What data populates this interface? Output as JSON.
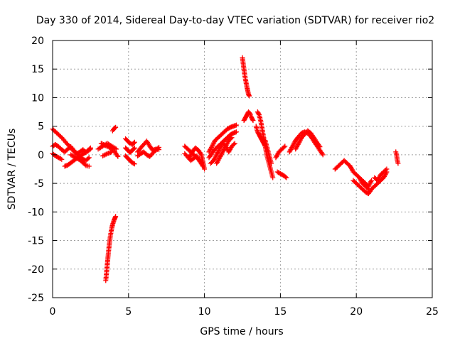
{
  "chart_data": {
    "type": "scatter",
    "title": "Day 330 of 2014, Sidereal Day-to-day VTEC variation (SDTVAR) for receiver rio2",
    "xlabel": "GPS time / hours",
    "ylabel": "SDTVAR / TECUs",
    "xlim": [
      0,
      25
    ],
    "ylim": [
      -25,
      20
    ],
    "x_ticks": [
      0,
      5,
      10,
      15,
      20,
      25
    ],
    "y_ticks": [
      -25,
      -20,
      -15,
      -10,
      -5,
      0,
      5,
      10,
      15,
      20
    ],
    "grid": true,
    "marker": "plus",
    "marker_color": "#ff0000",
    "series": [
      {
        "name": "SDTVAR",
        "segments": [
          {
            "x": [
              0.0,
              0.2,
              0.4,
              0.6,
              0.8,
              1.0,
              1.2,
              1.4,
              1.6,
              1.8,
              2.0,
              2.2,
              2.4
            ],
            "y": [
              4.5,
              4.0,
              3.5,
              3.0,
              2.4,
              1.8,
              1.2,
              0.6,
              0.2,
              -0.3,
              -0.8,
              -1.0,
              -0.5
            ]
          },
          {
            "x": [
              0.0,
              0.2,
              0.4,
              0.6,
              0.8,
              1.0,
              1.2,
              1.4,
              1.6,
              1.8,
              2.0,
              2.2,
              2.5
            ],
            "y": [
              1.5,
              1.8,
              1.4,
              0.9,
              0.5,
              1.0,
              1.4,
              0.8,
              0.2,
              0.5,
              0.9,
              0.4,
              1.0
            ]
          },
          {
            "x": [
              0.0,
              0.2,
              0.4,
              0.6
            ],
            "y": [
              0.2,
              -0.2,
              -0.5,
              -0.8
            ]
          },
          {
            "x": [
              0.8,
              1.0,
              1.2,
              1.4,
              1.6,
              1.8,
              2.0,
              2.2,
              2.5
            ],
            "y": [
              -2.0,
              -1.8,
              -1.4,
              -1.0,
              -0.6,
              -0.3,
              0.1,
              0.5,
              1.2
            ]
          },
          {
            "x": [
              1.2,
              1.4,
              1.6,
              1.8,
              2.0,
              2.2,
              2.4
            ],
            "y": [
              0.0,
              -0.3,
              -0.6,
              -0.9,
              -1.4,
              -1.9,
              -2.0
            ]
          },
          {
            "x": [
              3.0,
              3.3,
              3.6,
              3.9,
              4.2
            ],
            "y": [
              1.0,
              1.5,
              2.0,
              1.5,
              1.0
            ]
          },
          {
            "x": [
              3.2,
              3.5,
              3.8,
              4.1,
              4.3
            ],
            "y": [
              2.0,
              1.6,
              1.2,
              0.5,
              -0.3
            ]
          },
          {
            "x": [
              3.3,
              3.6,
              3.9
            ],
            "y": [
              -0.2,
              0.2,
              0.5
            ]
          },
          {
            "x": [
              3.95,
              4.05,
              4.15
            ],
            "y": [
              4.2,
              4.6,
              4.8
            ]
          },
          {
            "x": [
              3.5,
              3.55,
              3.6,
              3.65,
              3.7,
              3.75,
              3.8,
              3.85,
              3.9,
              3.95,
              4.0,
              4.05,
              4.1,
              4.15
            ],
            "y": [
              -22.0,
              -20.7,
              -19.2,
              -17.8,
              -16.5,
              -15.3,
              -14.3,
              -13.5,
              -12.8,
              -12.2,
              -11.8,
              -11.4,
              -11.1,
              -10.8
            ]
          },
          {
            "x": [
              4.8,
              4.95,
              5.1,
              5.25,
              5.4
            ],
            "y": [
              2.8,
              2.4,
              2.0,
              1.8,
              2.2
            ]
          },
          {
            "x": [
              4.8,
              4.95,
              5.1,
              5.25,
              5.4
            ],
            "y": [
              1.2,
              0.8,
              0.4,
              0.8,
              1.2
            ]
          },
          {
            "x": [
              4.8,
              4.95,
              5.1,
              5.25,
              5.4
            ],
            "y": [
              -0.2,
              -0.6,
              -1.0,
              -1.4,
              -1.6
            ]
          },
          {
            "x": [
              5.6,
              5.8,
              6.0,
              6.2,
              6.4,
              6.6,
              6.8,
              7.0
            ],
            "y": [
              0.5,
              1.2,
              1.8,
              2.4,
              1.5,
              0.8,
              1.0,
              0.9
            ]
          },
          {
            "x": [
              5.6,
              5.8,
              6.0,
              6.2,
              6.4,
              6.6,
              6.8,
              7.0
            ],
            "y": [
              -0.2,
              0.2,
              0.5,
              0.0,
              -0.3,
              0.3,
              0.8,
              1.3
            ]
          },
          {
            "x": [
              8.7,
              8.9,
              9.1,
              9.3,
              9.5,
              9.7,
              9.9
            ],
            "y": [
              1.5,
              1.0,
              0.5,
              0.0,
              -0.5,
              -1.0,
              -1.5
            ]
          },
          {
            "x": [
              8.7,
              8.9,
              9.1,
              9.3,
              9.5,
              9.7,
              9.9
            ],
            "y": [
              0.2,
              -0.4,
              -1.0,
              -0.6,
              -0.2,
              -1.2,
              -2.0
            ]
          },
          {
            "x": [
              9.0,
              9.2,
              9.4,
              9.6,
              9.8,
              10.0
            ],
            "y": [
              -0.5,
              0.5,
              1.2,
              0.8,
              0.0,
              -2.5
            ]
          },
          {
            "x": [
              10.3,
              10.5,
              10.7,
              10.9,
              11.1,
              11.3,
              11.5,
              11.7,
              11.9,
              12.1
            ],
            "y": [
              0.5,
              1.5,
              2.5,
              3.0,
              3.5,
              4.0,
              4.5,
              4.8,
              5.0,
              5.2
            ]
          },
          {
            "x": [
              10.3,
              10.5,
              10.7,
              10.9,
              11.1,
              11.3,
              11.5,
              11.7,
              11.9,
              12.1
            ],
            "y": [
              -0.5,
              0.3,
              1.0,
              1.5,
              2.0,
              2.5,
              3.0,
              3.5,
              3.8,
              4.0
            ]
          },
          {
            "x": [
              10.4,
              10.6,
              10.8,
              11.0,
              11.2,
              11.4,
              11.6,
              11.8,
              12.0
            ],
            "y": [
              -1.5,
              -1.0,
              0.0,
              1.0,
              2.0,
              1.5,
              0.5,
              1.5,
              2.0
            ]
          },
          {
            "x": [
              10.8,
              11.0,
              11.2,
              11.4,
              11.6,
              11.8
            ],
            "y": [
              -1.5,
              -0.5,
              0.5,
              1.5,
              2.5,
              3.0
            ]
          },
          {
            "x": [
              12.5,
              12.55,
              12.6,
              12.65,
              12.7,
              12.75,
              12.8,
              12.85,
              12.9,
              12.95
            ],
            "y": [
              17.0,
              16.0,
              15.0,
              14.0,
              13.2,
              12.5,
              11.8,
              11.2,
              10.6,
              10.3
            ]
          },
          {
            "x": [
              12.6,
              12.7,
              12.8,
              12.9,
              13.0,
              13.1,
              13.2
            ],
            "y": [
              6.0,
              6.5,
              7.0,
              7.5,
              7.2,
              6.5,
              6.0
            ]
          },
          {
            "x": [
              13.5,
              13.6,
              13.7,
              13.8,
              13.9,
              14.0,
              14.1,
              14.2,
              14.3,
              14.4,
              14.5
            ],
            "y": [
              7.5,
              7.0,
              6.0,
              4.5,
              3.0,
              1.5,
              0.0,
              -1.0,
              -2.0,
              -3.0,
              -4.0
            ]
          },
          {
            "x": [
              13.4,
              13.5,
              13.6,
              13.7,
              13.8,
              13.9,
              14.0
            ],
            "y": [
              5.0,
              4.0,
              3.5,
              3.0,
              2.5,
              2.0,
              1.5
            ]
          },
          {
            "x": [
              14.0,
              14.1,
              14.2,
              14.3,
              14.4
            ],
            "y": [
              2.5,
              1.5,
              0.5,
              -0.5,
              -1.5
            ]
          },
          {
            "x": [
              14.7,
              14.9,
              15.1,
              15.3
            ],
            "y": [
              -0.5,
              0.5,
              1.0,
              1.5
            ]
          },
          {
            "x": [
              14.8,
              15.0,
              15.2,
              15.4
            ],
            "y": [
              -3.0,
              -3.3,
              -3.6,
              -4.0
            ]
          },
          {
            "x": [
              15.6,
              15.8,
              16.0,
              16.2,
              16.4,
              16.6,
              16.8,
              17.0,
              17.2,
              17.4,
              17.6,
              17.8
            ],
            "y": [
              0.5,
              1.5,
              2.5,
              3.2,
              3.8,
              4.0,
              3.8,
              3.2,
              2.4,
              1.6,
              0.8,
              0.0
            ]
          },
          {
            "x": [
              16.0,
              16.2,
              16.4,
              16.6,
              16.8,
              17.0,
              17.2,
              17.4,
              17.6
            ],
            "y": [
              1.0,
              2.0,
              3.0,
              3.6,
              4.2,
              3.8,
              3.0,
              2.2,
              1.4
            ]
          },
          {
            "x": [
              18.6,
              18.8,
              19.0,
              19.2,
              19.4,
              19.6
            ],
            "y": [
              -2.5,
              -2.0,
              -1.5,
              -1.0,
              -1.5,
              -2.0
            ]
          },
          {
            "x": [
              19.6,
              19.8,
              20.0,
              20.2,
              20.4,
              20.6,
              20.8,
              21.0
            ],
            "y": [
              -2.0,
              -3.0,
              -3.5,
              -4.0,
              -4.5,
              -5.0,
              -5.5,
              -4.5
            ]
          },
          {
            "x": [
              19.8,
              20.0,
              20.2,
              20.4,
              20.6,
              20.8,
              21.0
            ],
            "y": [
              -4.5,
              -5.0,
              -5.5,
              -6.0,
              -6.5,
              -6.8,
              -6.0
            ]
          },
          {
            "x": [
              20.2,
              20.4,
              20.6,
              20.8
            ],
            "y": [
              -4.0,
              -5.0,
              -5.5,
              -6.0
            ]
          },
          {
            "x": [
              21.0,
              21.2,
              21.4,
              21.6,
              21.8,
              22.0
            ],
            "y": [
              -6.0,
              -5.5,
              -5.0,
              -4.5,
              -4.0,
              -3.0
            ]
          },
          {
            "x": [
              21.2,
              21.4,
              21.6,
              21.8,
              22.0
            ],
            "y": [
              -4.0,
              -4.5,
              -3.5,
              -3.0,
              -2.5
            ]
          },
          {
            "x": [
              22.6,
              22.65,
              22.7,
              22.75
            ],
            "y": [
              0.5,
              0.0,
              -1.0,
              -1.5
            ]
          }
        ]
      }
    ]
  }
}
